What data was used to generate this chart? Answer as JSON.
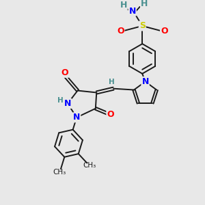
{
  "bg_color": "#e8e8e8",
  "bond_color": "#1a1a1a",
  "nitrogen_color": "#0000ff",
  "oxygen_color": "#ff0000",
  "sulfur_color": "#cccc00",
  "hydrogen_color": "#4a9090",
  "figsize": [
    3.0,
    3.0
  ],
  "dpi": 100,
  "xlim": [
    0,
    10
  ],
  "ylim": [
    0,
    10
  ]
}
